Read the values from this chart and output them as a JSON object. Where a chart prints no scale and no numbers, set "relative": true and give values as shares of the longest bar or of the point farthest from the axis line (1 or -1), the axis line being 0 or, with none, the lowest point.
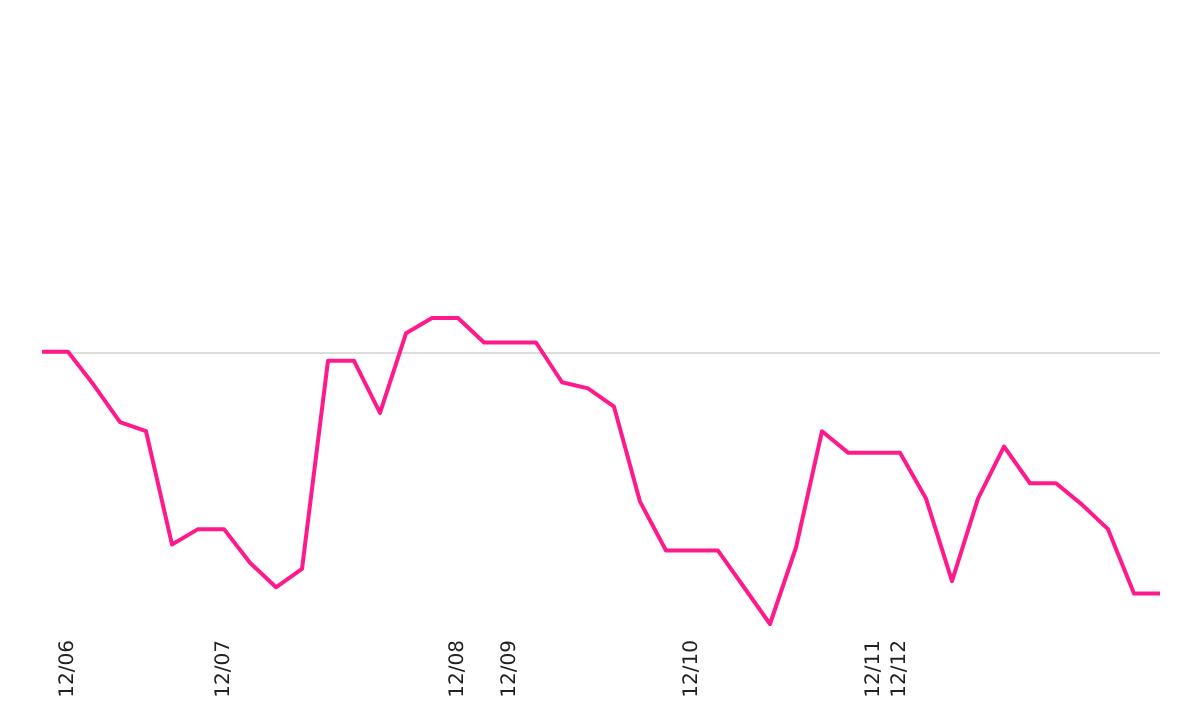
{
  "chart_data": {
    "type": "line",
    "relative": true,
    "categories": [
      null,
      "12/06",
      null,
      null,
      null,
      null,
      null,
      "12/07",
      null,
      null,
      null,
      null,
      null,
      null,
      null,
      null,
      "12/08",
      null,
      "12/09",
      null,
      null,
      null,
      null,
      null,
      null,
      "12/10",
      null,
      null,
      null,
      null,
      null,
      null,
      "12/11",
      "12/12",
      null,
      null,
      null,
      null,
      null,
      null,
      null,
      null,
      null,
      null
    ],
    "series": [
      {
        "color": "#ff1a8c",
        "values": [
          0.89,
          0.89,
          0.78,
          0.66,
          0.63,
          0.26,
          0.31,
          0.31,
          0.2,
          0.12,
          0.18,
          0.86,
          0.86,
          0.69,
          0.95,
          1,
          1,
          0.92,
          0.92,
          0.92,
          0.79,
          0.77,
          0.71,
          0.4,
          0.24,
          0.24,
          0.24,
          0.12,
          0,
          0.25,
          0.63,
          0.56,
          0.56,
          0.56,
          0.41,
          0.14,
          0.41,
          0.58,
          0.46,
          0.46,
          0.39,
          0.31,
          0.1,
          0.1
        ]
      }
    ],
    "ref_lines": [
      {
        "axis": "y",
        "value": 0.89,
        "color": "#dddddd"
      }
    ],
    "grid": false,
    "marker": "none",
    "line_style": "solid"
  }
}
